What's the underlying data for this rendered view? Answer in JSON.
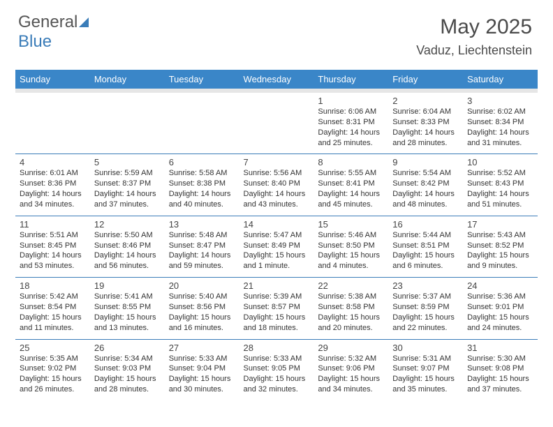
{
  "logo": {
    "part1": "General",
    "part2": "Blue"
  },
  "title": "May 2025",
  "subtitle": "Vaduz, Liechtenstein",
  "colors": {
    "header_bg": "#3a86c8",
    "header_fg": "#ffffff",
    "rule": "#3a7cb8",
    "subheader_bg": "#e6e6e6",
    "text": "#333333"
  },
  "weekdays": [
    "Sunday",
    "Monday",
    "Tuesday",
    "Wednesday",
    "Thursday",
    "Friday",
    "Saturday"
  ],
  "weeks": [
    [
      null,
      null,
      null,
      null,
      {
        "n": "1",
        "r": "6:06 AM",
        "s": "8:31 PM",
        "d": "14 hours and 25 minutes."
      },
      {
        "n": "2",
        "r": "6:04 AM",
        "s": "8:33 PM",
        "d": "14 hours and 28 minutes."
      },
      {
        "n": "3",
        "r": "6:02 AM",
        "s": "8:34 PM",
        "d": "14 hours and 31 minutes."
      }
    ],
    [
      {
        "n": "4",
        "r": "6:01 AM",
        "s": "8:36 PM",
        "d": "14 hours and 34 minutes."
      },
      {
        "n": "5",
        "r": "5:59 AM",
        "s": "8:37 PM",
        "d": "14 hours and 37 minutes."
      },
      {
        "n": "6",
        "r": "5:58 AM",
        "s": "8:38 PM",
        "d": "14 hours and 40 minutes."
      },
      {
        "n": "7",
        "r": "5:56 AM",
        "s": "8:40 PM",
        "d": "14 hours and 43 minutes."
      },
      {
        "n": "8",
        "r": "5:55 AM",
        "s": "8:41 PM",
        "d": "14 hours and 45 minutes."
      },
      {
        "n": "9",
        "r": "5:54 AM",
        "s": "8:42 PM",
        "d": "14 hours and 48 minutes."
      },
      {
        "n": "10",
        "r": "5:52 AM",
        "s": "8:43 PM",
        "d": "14 hours and 51 minutes."
      }
    ],
    [
      {
        "n": "11",
        "r": "5:51 AM",
        "s": "8:45 PM",
        "d": "14 hours and 53 minutes."
      },
      {
        "n": "12",
        "r": "5:50 AM",
        "s": "8:46 PM",
        "d": "14 hours and 56 minutes."
      },
      {
        "n": "13",
        "r": "5:48 AM",
        "s": "8:47 PM",
        "d": "14 hours and 59 minutes."
      },
      {
        "n": "14",
        "r": "5:47 AM",
        "s": "8:49 PM",
        "d": "15 hours and 1 minute."
      },
      {
        "n": "15",
        "r": "5:46 AM",
        "s": "8:50 PM",
        "d": "15 hours and 4 minutes."
      },
      {
        "n": "16",
        "r": "5:44 AM",
        "s": "8:51 PM",
        "d": "15 hours and 6 minutes."
      },
      {
        "n": "17",
        "r": "5:43 AM",
        "s": "8:52 PM",
        "d": "15 hours and 9 minutes."
      }
    ],
    [
      {
        "n": "18",
        "r": "5:42 AM",
        "s": "8:54 PM",
        "d": "15 hours and 11 minutes."
      },
      {
        "n": "19",
        "r": "5:41 AM",
        "s": "8:55 PM",
        "d": "15 hours and 13 minutes."
      },
      {
        "n": "20",
        "r": "5:40 AM",
        "s": "8:56 PM",
        "d": "15 hours and 16 minutes."
      },
      {
        "n": "21",
        "r": "5:39 AM",
        "s": "8:57 PM",
        "d": "15 hours and 18 minutes."
      },
      {
        "n": "22",
        "r": "5:38 AM",
        "s": "8:58 PM",
        "d": "15 hours and 20 minutes."
      },
      {
        "n": "23",
        "r": "5:37 AM",
        "s": "8:59 PM",
        "d": "15 hours and 22 minutes."
      },
      {
        "n": "24",
        "r": "5:36 AM",
        "s": "9:01 PM",
        "d": "15 hours and 24 minutes."
      }
    ],
    [
      {
        "n": "25",
        "r": "5:35 AM",
        "s": "9:02 PM",
        "d": "15 hours and 26 minutes."
      },
      {
        "n": "26",
        "r": "5:34 AM",
        "s": "9:03 PM",
        "d": "15 hours and 28 minutes."
      },
      {
        "n": "27",
        "r": "5:33 AM",
        "s": "9:04 PM",
        "d": "15 hours and 30 minutes."
      },
      {
        "n": "28",
        "r": "5:33 AM",
        "s": "9:05 PM",
        "d": "15 hours and 32 minutes."
      },
      {
        "n": "29",
        "r": "5:32 AM",
        "s": "9:06 PM",
        "d": "15 hours and 34 minutes."
      },
      {
        "n": "30",
        "r": "5:31 AM",
        "s": "9:07 PM",
        "d": "15 hours and 35 minutes."
      },
      {
        "n": "31",
        "r": "5:30 AM",
        "s": "9:08 PM",
        "d": "15 hours and 37 minutes."
      }
    ]
  ],
  "labels": {
    "sunrise": "Sunrise: ",
    "sunset": "Sunset: ",
    "daylight": "Daylight: "
  }
}
